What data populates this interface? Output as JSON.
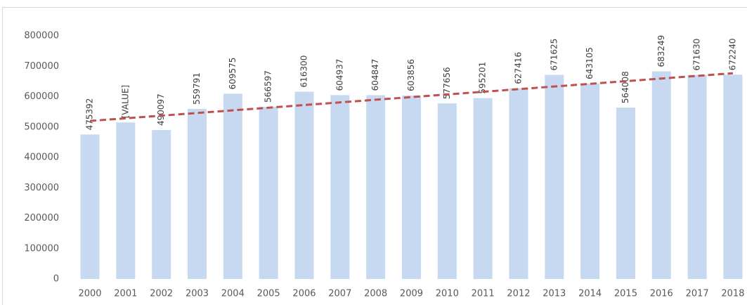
{
  "chart_data": {
    "type": "bar",
    "categories": [
      "2000",
      "2001",
      "2002",
      "2003",
      "2004",
      "2005",
      "2006",
      "2007",
      "2008",
      "2009",
      "2010",
      "2011",
      "2012",
      "2013",
      "2014",
      "2015",
      "2016",
      "2017",
      "2018"
    ],
    "values": [
      475392,
      515000,
      490097,
      559791,
      609575,
      566597,
      616300,
      604937,
      604847,
      603856,
      577656,
      595201,
      627416,
      671625,
      643105,
      564008,
      683249,
      671630,
      672240
    ],
    "value_labels": [
      "475392",
      "[VALUE]",
      "490097",
      "559791",
      "609575",
      "566597",
      "616300",
      "604937",
      "604847",
      "603856",
      "577656",
      "595201",
      "627416",
      "671625",
      "643105",
      "564008",
      "683249",
      "671630",
      "672240"
    ],
    "color": "#c6d9f1",
    "ylim": [
      0,
      800000
    ],
    "yticks": [
      0,
      100000,
      200000,
      300000,
      400000,
      500000,
      600000,
      700000,
      800000
    ],
    "grid": false,
    "trend": {
      "start": 520000,
      "end": 677000,
      "color": "#c0504d"
    }
  }
}
